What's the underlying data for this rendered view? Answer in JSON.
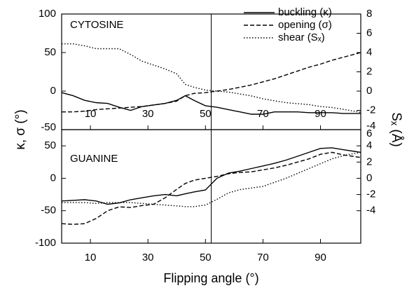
{
  "chart_data": [
    {
      "type": "line",
      "title": "CYTOSINE",
      "ylabel": "κ, σ (°)",
      "y2label": "Sₓ (Å)",
      "legend": "top-right",
      "x": [
        0,
        4,
        8,
        12,
        16,
        20,
        24,
        28,
        32,
        36,
        40,
        43,
        46,
        50,
        54,
        58,
        62,
        66,
        70,
        74,
        78,
        82,
        86,
        90,
        94,
        98,
        104
      ],
      "series": [
        {
          "name": "buckling (κ)",
          "color": "#000000",
          "dash": "solid",
          "values": [
            -2,
            -6,
            -12,
            -15,
            -16,
            -21,
            -25,
            -20,
            -18,
            -16,
            -12,
            -6,
            -12,
            -19,
            -21,
            -24,
            -27,
            -30,
            -30,
            -27,
            -27,
            -27,
            -28,
            -28,
            -28,
            -29,
            -29
          ]
        },
        {
          "name": "opening (σ)",
          "color": "#000000",
          "dash": "dashed",
          "values": [
            -27,
            -27,
            -26,
            -24,
            -23,
            -22,
            -21,
            -20,
            -18,
            -16,
            -13,
            -6,
            -3,
            -2,
            0,
            2,
            5,
            8,
            12,
            16,
            21,
            26,
            31,
            35,
            40,
            44,
            50
          ]
        },
        {
          "name": "shear (Sₓ)",
          "color": "#000000",
          "dash": "dotted",
          "axis": "y2",
          "values": [
            4.9,
            4.9,
            4.7,
            4.4,
            4.4,
            4.4,
            3.8,
            3.1,
            2.7,
            2.3,
            1.8,
            0.7,
            0.4,
            0.1,
            0,
            -0.1,
            -0.3,
            -0.5,
            -0.8,
            -1.0,
            -1.2,
            -1.3,
            -1.4,
            -1.6,
            -1.7,
            -1.9,
            -2.2
          ]
        }
      ],
      "vline": 52,
      "xlim": [
        0,
        104
      ],
      "xticks": [
        10,
        30,
        50,
        70,
        90
      ],
      "ylim": [
        -50,
        100
      ],
      "yticks": [
        -50,
        0,
        50,
        100
      ],
      "y2lim": [
        -4,
        8
      ],
      "y2ticks": [
        -4,
        -2,
        0,
        2,
        4,
        6,
        8
      ]
    },
    {
      "type": "line",
      "title": "GUANINE",
      "xlabel": "Flipping angle (°)",
      "x": [
        0,
        4,
        8,
        12,
        16,
        20,
        24,
        28,
        32,
        36,
        40,
        43,
        46,
        50,
        54,
        58,
        62,
        66,
        70,
        74,
        78,
        82,
        86,
        90,
        94,
        98,
        104
      ],
      "series": [
        {
          "color": "#000000",
          "dash": "solid",
          "values": [
            -35,
            -34,
            -33,
            -35,
            -40,
            -38,
            -33,
            -30,
            -27,
            -25,
            -27,
            -24,
            -21,
            -18,
            0,
            8,
            11,
            15,
            19,
            23,
            28,
            34,
            40,
            46,
            47,
            44,
            40
          ]
        },
        {
          "color": "#000000",
          "dash": "dashed",
          "values": [
            -70,
            -71,
            -70,
            -62,
            -50,
            -44,
            -45,
            -42,
            -40,
            -30,
            -17,
            -8,
            -3,
            0,
            3,
            7,
            9,
            10,
            13,
            16,
            20,
            25,
            30,
            37,
            40,
            36,
            32
          ]
        },
        {
          "color": "#000000",
          "dash": "dotted",
          "axis": "y2",
          "values": [
            -3,
            -3,
            -3,
            -3.1,
            -3,
            -3,
            -3,
            -3.1,
            -3.2,
            -3.3,
            -3.4,
            -3.5,
            -3.5,
            -3.3,
            -2.6,
            -1.8,
            -1.4,
            -1.2,
            -1.0,
            -0.5,
            0,
            0.6,
            1.2,
            1.8,
            2.4,
            2.8,
            3.2
          ]
        }
      ],
      "vline": 52,
      "xlim": [
        0,
        104
      ],
      "xticks": [
        10,
        30,
        50,
        70,
        90
      ],
      "ylim": [
        -100,
        75
      ],
      "yticks": [
        -100,
        -50,
        0,
        50
      ],
      "y2lim": [
        -8,
        6
      ],
      "y2ticks": [
        -4,
        -2,
        0,
        2,
        4,
        6
      ]
    }
  ]
}
